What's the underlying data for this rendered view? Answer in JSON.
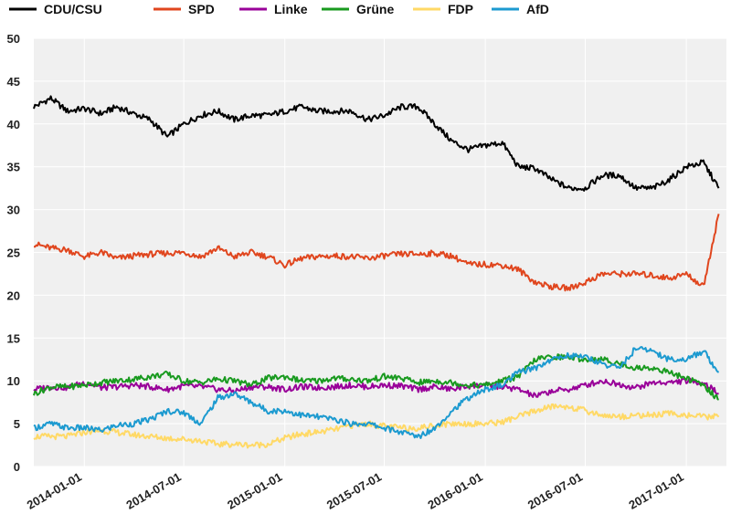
{
  "chart_data": {
    "type": "line",
    "title": "",
    "xlabel": "",
    "ylabel": "",
    "x_range": [
      "2013-10-01",
      "2017-03-15"
    ],
    "ylim": [
      0,
      50
    ],
    "y_ticks": [
      0,
      5,
      10,
      15,
      20,
      25,
      30,
      35,
      40,
      45,
      50
    ],
    "x_tick_labels": [
      "2014-01-01",
      "2014-07-01",
      "2015-01-01",
      "2015-07-01",
      "2016-01-01",
      "2016-07-01",
      "2017-01-01"
    ],
    "grid": true,
    "legend_position": "top",
    "x": [
      "2013-10-01",
      "2013-11-01",
      "2013-12-01",
      "2014-01-01",
      "2014-02-01",
      "2014-03-01",
      "2014-04-01",
      "2014-05-01",
      "2014-06-01",
      "2014-07-01",
      "2014-08-01",
      "2014-09-01",
      "2014-10-01",
      "2014-11-01",
      "2014-12-01",
      "2015-01-01",
      "2015-02-01",
      "2015-03-01",
      "2015-04-01",
      "2015-05-01",
      "2015-06-01",
      "2015-07-01",
      "2015-08-01",
      "2015-09-01",
      "2015-10-01",
      "2015-11-01",
      "2015-12-01",
      "2016-01-01",
      "2016-02-01",
      "2016-03-01",
      "2016-04-01",
      "2016-05-01",
      "2016-06-01",
      "2016-07-01",
      "2016-08-01",
      "2016-09-01",
      "2016-10-01",
      "2016-11-01",
      "2016-12-01",
      "2017-01-01",
      "2017-02-01",
      "2017-03-01"
    ],
    "series": [
      {
        "name": "CDU/CSU",
        "color": "#000000",
        "values": [
          42.0,
          43.0,
          41.5,
          41.8,
          41.2,
          42.0,
          41.2,
          40.5,
          38.5,
          40.0,
          41.0,
          41.5,
          40.5,
          41.0,
          41.0,
          41.5,
          42.0,
          41.5,
          41.5,
          41.5,
          40.5,
          41.0,
          42.0,
          42.0,
          40.0,
          38.0,
          37.0,
          37.5,
          37.8,
          35.0,
          34.8,
          33.5,
          32.5,
          32.5,
          34.0,
          34.0,
          32.5,
          32.5,
          33.5,
          35.0,
          35.5,
          32.5
        ]
      },
      {
        "name": "SPD",
        "color": "#e0461e",
        "values": [
          26.0,
          25.5,
          25.3,
          24.5,
          25.0,
          24.3,
          24.6,
          24.8,
          24.9,
          25.0,
          24.5,
          25.5,
          24.5,
          25.0,
          24.5,
          23.5,
          24.3,
          24.5,
          24.6,
          24.5,
          24.3,
          24.6,
          24.8,
          24.8,
          24.9,
          24.6,
          23.6,
          23.6,
          23.5,
          23.0,
          21.5,
          21.0,
          20.8,
          21.5,
          22.5,
          22.5,
          22.5,
          22.3,
          22.0,
          22.5,
          21.0,
          29.5
        ]
      },
      {
        "name": "Linke",
        "color": "#990099",
        "values": [
          9.0,
          9.3,
          9.2,
          9.8,
          9.2,
          9.3,
          9.5,
          9.3,
          9.0,
          9.4,
          9.3,
          9.0,
          8.8,
          9.3,
          9.3,
          9.0,
          9.3,
          9.2,
          9.3,
          9.5,
          9.3,
          9.5,
          9.4,
          9.0,
          9.3,
          9.0,
          9.4,
          9.5,
          9.3,
          9.0,
          8.2,
          8.8,
          9.0,
          9.5,
          10.0,
          9.6,
          9.2,
          9.8,
          9.8,
          10.0,
          9.8,
          8.5
        ]
      },
      {
        "name": "Grüne",
        "color": "#199a1f",
        "values": [
          8.5,
          9.3,
          9.3,
          9.5,
          9.8,
          10.0,
          10.2,
          10.5,
          10.8,
          10.0,
          9.8,
          10.2,
          10.0,
          9.5,
          10.3,
          10.5,
          10.0,
          10.0,
          10.3,
          10.2,
          10.0,
          10.5,
          10.3,
          9.8,
          10.0,
          9.8,
          9.5,
          9.5,
          10.0,
          10.5,
          12.5,
          12.8,
          12.8,
          12.5,
          12.5,
          12.0,
          11.5,
          11.5,
          11.0,
          10.3,
          9.5,
          7.8
        ]
      },
      {
        "name": "FDP",
        "color": "#ffd966",
        "values": [
          3.5,
          3.5,
          3.5,
          4.0,
          4.2,
          4.0,
          3.7,
          3.5,
          3.3,
          3.2,
          3.0,
          2.6,
          2.6,
          2.5,
          2.6,
          3.3,
          3.8,
          4.0,
          4.3,
          4.8,
          5.0,
          4.7,
          4.5,
          4.5,
          4.8,
          5.0,
          5.0,
          5.0,
          5.2,
          5.8,
          6.5,
          7.0,
          7.0,
          6.5,
          6.0,
          5.8,
          6.0,
          6.0,
          6.2,
          6.0,
          5.8,
          5.8
        ]
      },
      {
        "name": "AfD",
        "color": "#1c9ad0",
        "values": [
          4.5,
          5.0,
          4.5,
          4.5,
          4.2,
          4.8,
          5.0,
          5.5,
          6.5,
          6.3,
          5.0,
          8.0,
          8.5,
          7.5,
          6.5,
          6.5,
          6.0,
          5.8,
          5.5,
          5.0,
          5.0,
          4.5,
          4.0,
          3.5,
          4.5,
          6.5,
          8.0,
          9.0,
          9.5,
          11.0,
          11.5,
          12.5,
          13.0,
          12.8,
          12.0,
          11.5,
          13.8,
          13.5,
          12.5,
          12.5,
          13.5,
          11.0
        ]
      }
    ]
  }
}
